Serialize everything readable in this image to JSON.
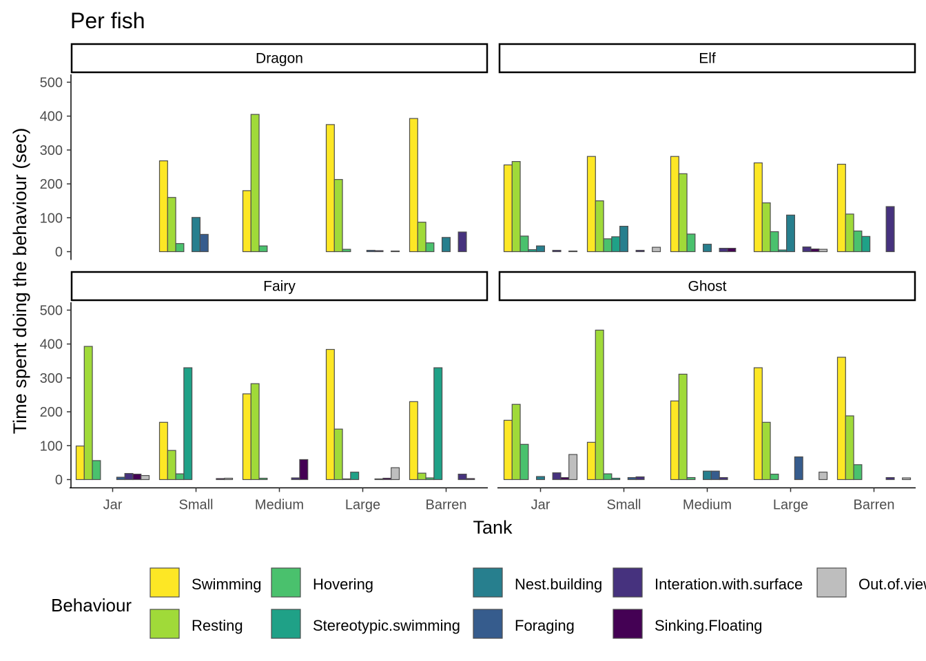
{
  "chart_data": {
    "type": "bar",
    "title": "Per fish",
    "xlabel": "Tank",
    "ylabel": "Time spent doing the behaviour (sec)",
    "ylim": [
      0,
      520
    ],
    "yticks": [
      0,
      100,
      200,
      300,
      400,
      500
    ],
    "categories": [
      "Jar",
      "Small",
      "Medium",
      "Large",
      "Barren"
    ],
    "grid": false,
    "legend": {
      "title": "Behaviour",
      "position": "bottom",
      "order": [
        "Swimming",
        "Hovering",
        "Nest.building",
        "Interation.with.surface",
        "Out.of.view",
        "Resting",
        "Stereotypic.swimming",
        "Foraging",
        "Sinking.Floating"
      ]
    },
    "series_order": [
      "Swimming",
      "Resting",
      "Hovering",
      "Stereotypic.swimming",
      "Nest.building",
      "Foraging",
      "Interation.with.surface",
      "Sinking.Floating",
      "Out.of.view"
    ],
    "colors": {
      "Swimming": "#fde725",
      "Resting": "#a0da39",
      "Hovering": "#4ac16d",
      "Stereotypic.swimming": "#1fa187",
      "Nest.building": "#277f8e",
      "Foraging": "#365c8d",
      "Interation.with.surface": "#46327e",
      "Sinking.Floating": "#440154",
      "Out.of.view": "#bebebe"
    },
    "facets": [
      {
        "name": "Dragon",
        "values": {
          "Jar": null,
          "Small": [
            268,
            160,
            24,
            0,
            101,
            51,
            0,
            0,
            0
          ],
          "Medium": [
            180,
            405,
            17,
            0,
            0,
            0,
            0,
            0,
            0
          ],
          "Large": [
            375,
            213,
            7,
            0,
            0,
            4,
            3,
            0,
            2
          ],
          "Barren": [
            393,
            87,
            26,
            0,
            42,
            0,
            58,
            0,
            0
          ]
        }
      },
      {
        "name": "Elf",
        "values": {
          "Jar": [
            256,
            266,
            46,
            6,
            17,
            0,
            4,
            0,
            2
          ],
          "Small": [
            281,
            150,
            38,
            44,
            75,
            0,
            4,
            0,
            13
          ],
          "Medium": [
            281,
            230,
            52,
            0,
            22,
            0,
            10,
            10,
            0
          ],
          "Large": [
            262,
            144,
            59,
            5,
            108,
            0,
            14,
            8,
            7
          ],
          "Barren": [
            258,
            111,
            61,
            45,
            0,
            0,
            133,
            0,
            0
          ]
        }
      },
      {
        "name": "Fairy",
        "values": {
          "Jar": [
            99,
            393,
            56,
            0,
            0,
            7,
            18,
            16,
            12
          ],
          "Small": [
            169,
            86,
            17,
            330,
            0,
            0,
            0,
            3,
            4
          ],
          "Medium": [
            253,
            283,
            4,
            0,
            0,
            0,
            5,
            59,
            0
          ],
          "Large": [
            384,
            149,
            2,
            22,
            0,
            0,
            2,
            4,
            35
          ],
          "Barren": [
            230,
            19,
            5,
            330,
            0,
            0,
            16,
            3,
            0
          ]
        }
      },
      {
        "name": "Ghost",
        "values": {
          "Jar": [
            175,
            222,
            104,
            0,
            9,
            0,
            20,
            6,
            74
          ],
          "Small": [
            110,
            441,
            17,
            4,
            0,
            6,
            8,
            0,
            0
          ],
          "Medium": [
            232,
            311,
            6,
            0,
            25,
            25,
            6,
            0,
            0
          ],
          "Large": [
            330,
            169,
            16,
            0,
            0,
            67,
            0,
            0,
            22
          ],
          "Barren": [
            361,
            188,
            44,
            0,
            0,
            0,
            6,
            0,
            5
          ]
        }
      }
    ]
  }
}
